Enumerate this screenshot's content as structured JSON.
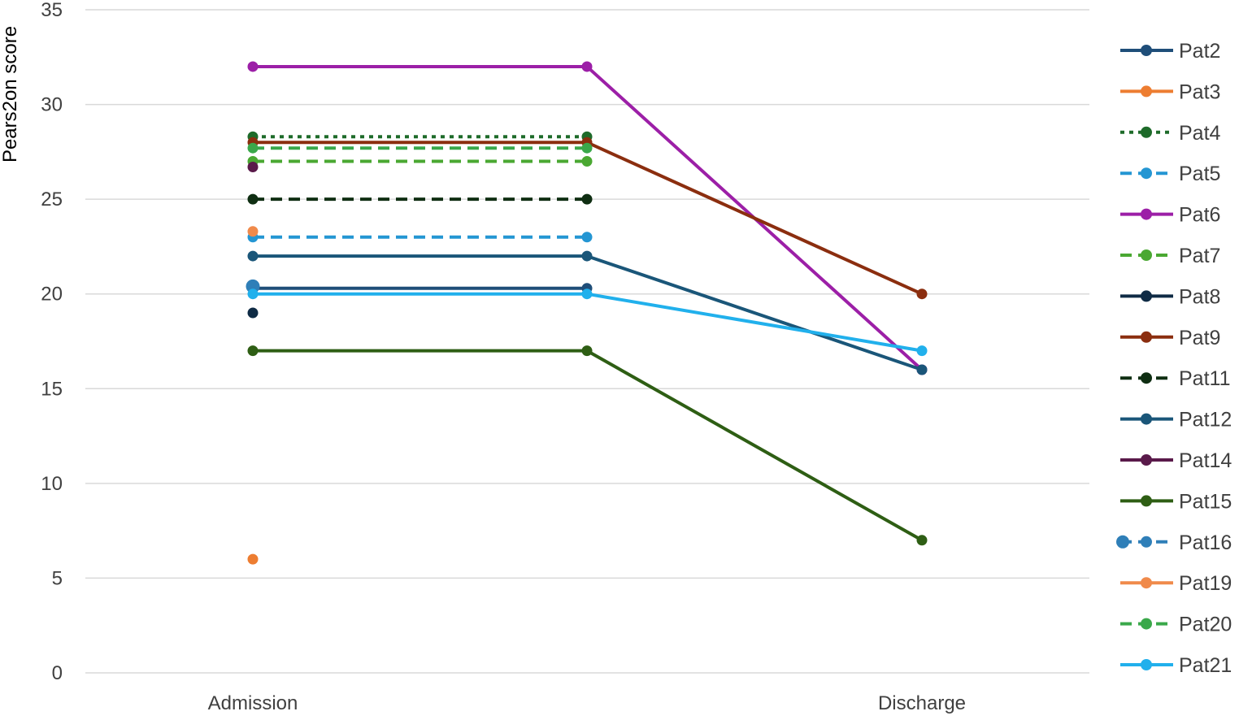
{
  "chart_data": {
    "type": "line",
    "title": "",
    "xlabel": "",
    "ylabel": "Pears2on score",
    "ylim": [
      0,
      35
    ],
    "yticks": [
      0,
      5,
      10,
      15,
      20,
      25,
      30,
      35
    ],
    "categories": [
      "Admission",
      "",
      "Discharge"
    ],
    "grid": true,
    "legend_position": "right",
    "series": [
      {
        "name": "Pat2",
        "values": [
          20.3,
          20.3,
          null
        ],
        "color": "#1f4e79",
        "dash": "solid",
        "marker_size": 6
      },
      {
        "name": "Pat3",
        "values": [
          6,
          null,
          null
        ],
        "color": "#ed7d31",
        "dash": "solid",
        "marker_size": 6
      },
      {
        "name": "Pat4",
        "values": [
          28.3,
          28.3,
          null
        ],
        "color": "#1e6b2a",
        "dash": "dotted",
        "marker_size": 6
      },
      {
        "name": "Pat5",
        "values": [
          23,
          23,
          null
        ],
        "color": "#2496d3",
        "dash": "dashed",
        "marker_size": 6
      },
      {
        "name": "Pat6",
        "values": [
          32,
          32,
          16
        ],
        "color": "#9c1fa7",
        "dash": "solid",
        "marker_size": 6
      },
      {
        "name": "Pat7",
        "values": [
          27,
          27,
          null
        ],
        "color": "#4aa832",
        "dash": "dashed",
        "marker_size": 6
      },
      {
        "name": "Pat8",
        "values": [
          19,
          null,
          null
        ],
        "color": "#0f2b45",
        "dash": "solid",
        "marker_size": 6
      },
      {
        "name": "Pat9",
        "values": [
          28,
          28,
          20
        ],
        "color": "#8b2e0f",
        "dash": "solid",
        "marker_size": 6
      },
      {
        "name": "Pat11",
        "values": [
          25,
          25,
          null
        ],
        "color": "#0f2e12",
        "dash": "dashed",
        "marker_size": 6
      },
      {
        "name": "Pat12",
        "values": [
          22,
          22,
          16
        ],
        "color": "#1a5679",
        "dash": "solid",
        "marker_size": 6
      },
      {
        "name": "Pat14",
        "values": [
          26.7,
          null,
          null
        ],
        "color": "#5a1a4a",
        "dash": "solid",
        "marker_size": 6
      },
      {
        "name": "Pat15",
        "values": [
          17,
          17,
          7
        ],
        "color": "#2e5e14",
        "dash": "solid",
        "marker_size": 6
      },
      {
        "name": "Pat16",
        "values": [
          20.4,
          null,
          null
        ],
        "color": "#2f7fb8",
        "dash": "dashed",
        "marker_size": 8
      },
      {
        "name": "Pat19",
        "values": [
          23.3,
          null,
          null
        ],
        "color": "#f08a4b",
        "dash": "solid",
        "marker_size": 6
      },
      {
        "name": "Pat20",
        "values": [
          27.7,
          27.7,
          null
        ],
        "color": "#3aa84a",
        "dash": "dashed",
        "marker_size": 6
      },
      {
        "name": "Pat21",
        "values": [
          20,
          20,
          17
        ],
        "color": "#21b0ec",
        "dash": "solid",
        "marker_size": 6
      }
    ]
  }
}
